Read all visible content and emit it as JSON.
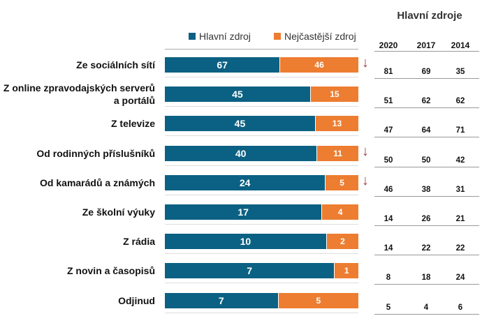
{
  "chart_data": {
    "type": "bar",
    "stacked": "100%",
    "orientation": "horizontal",
    "legend_position": "top",
    "categories": [
      "Ze sociálních sítí",
      "Z online zpravodajských serverů a portálů",
      "Z televize",
      "Od rodinných příslušníků",
      "Od kamarádů a známých",
      "Ze školní výuky",
      "Z rádia",
      "Z novin a časopisů",
      "Odjinud"
    ],
    "series": [
      {
        "name": "Hlavní zdroj",
        "color": "#0b6183",
        "values": [
          67,
          45,
          45,
          40,
          24,
          17,
          10,
          7,
          7
        ]
      },
      {
        "name": "Nejčastější zdroj",
        "color": "#ed7d31",
        "values": [
          46,
          15,
          13,
          11,
          5,
          4,
          2,
          1,
          5
        ]
      }
    ],
    "trend_down_arrows": [
      true,
      false,
      false,
      true,
      true,
      false,
      false,
      false,
      false
    ],
    "arrow_color": "#a23b46",
    "table": {
      "title": "Hlavní zdroje",
      "columns": [
        "2020",
        "2017",
        "2014"
      ],
      "rows": [
        [
          81,
          69,
          35
        ],
        [
          51,
          62,
          62
        ],
        [
          47,
          64,
          71
        ],
        [
          50,
          50,
          42
        ],
        [
          46,
          38,
          31
        ],
        [
          14,
          26,
          21
        ],
        [
          14,
          22,
          22
        ],
        [
          8,
          18,
          24
        ],
        [
          5,
          4,
          6
        ]
      ]
    }
  }
}
